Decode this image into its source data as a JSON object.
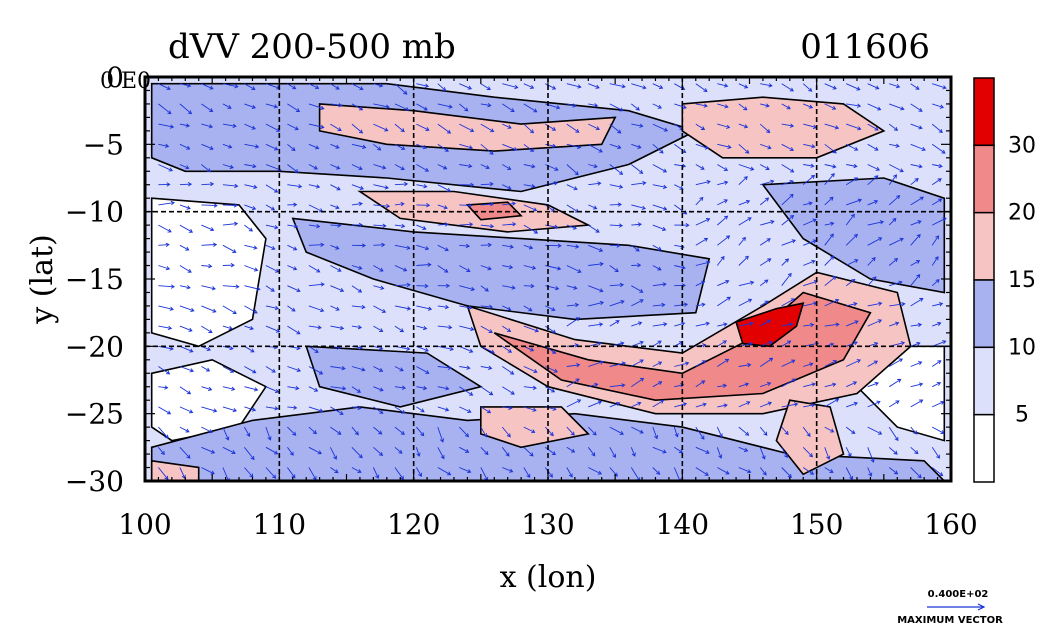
{
  "chart_data": {
    "type": "heatmap",
    "title": "dVV 200-500 mb",
    "date_label": "011606",
    "xlabel": "x (lon)",
    "ylabel": "y (lat)",
    "xlim": [
      100,
      160
    ],
    "ylim": [
      -30,
      0
    ],
    "x_ticks": [
      100,
      110,
      120,
      130,
      140,
      150,
      160
    ],
    "y_ticks": [
      0,
      -5,
      -10,
      -15,
      -20,
      -25,
      -30
    ],
    "x_tick_labels": [
      "100",
      "110",
      "120",
      "130",
      "140",
      "150",
      "160"
    ],
    "y_tick_labels": [
      "0",
      "−5",
      "−10",
      "−15",
      "−20",
      "−25",
      "−30"
    ],
    "grid": true,
    "grid_lines_x": [
      110,
      120,
      130,
      140,
      150
    ],
    "grid_lines_y": [
      -10,
      -20
    ],
    "origin_label": "0 E0",
    "colorbar": {
      "levels": [
        5,
        10,
        15,
        20,
        30
      ],
      "labels": [
        "5",
        "10",
        "15",
        "20",
        "30"
      ],
      "colors": [
        "#ffffff",
        "#dde0fa",
        "#a8b2f0",
        "#f7c4c4",
        "#f08a8a",
        "#e30000"
      ]
    },
    "vector_legend": {
      "value": "0.400E+02",
      "label": "MAXIMUM VECTOR",
      "color": "#1b33d8"
    },
    "features": [
      {
        "name": "strong jet core",
        "lon": 146.5,
        "lat": -18.5,
        "value": 32
      },
      {
        "name": "jet band",
        "lon_range": [
          125,
          155
        ],
        "lat_range": [
          -24,
          -16
        ],
        "value": 22
      },
      {
        "name": "northern band",
        "lon_range": [
          122,
          128
        ],
        "lat_range": [
          -11,
          -9
        ],
        "value": 18
      },
      {
        "name": "northern streak",
        "lon_range": [
          113,
          135
        ],
        "lat_range": [
          -5,
          -2
        ],
        "value": 16
      },
      {
        "name": "northeast lobe",
        "lon_range": [
          140,
          155
        ],
        "lat_range": [
          -6,
          -2
        ],
        "value": 16
      },
      {
        "name": "southwest lobe",
        "lon_range": [
          125,
          132
        ],
        "lat_range": [
          -27,
          -24
        ],
        "value": 15
      }
    ]
  }
}
